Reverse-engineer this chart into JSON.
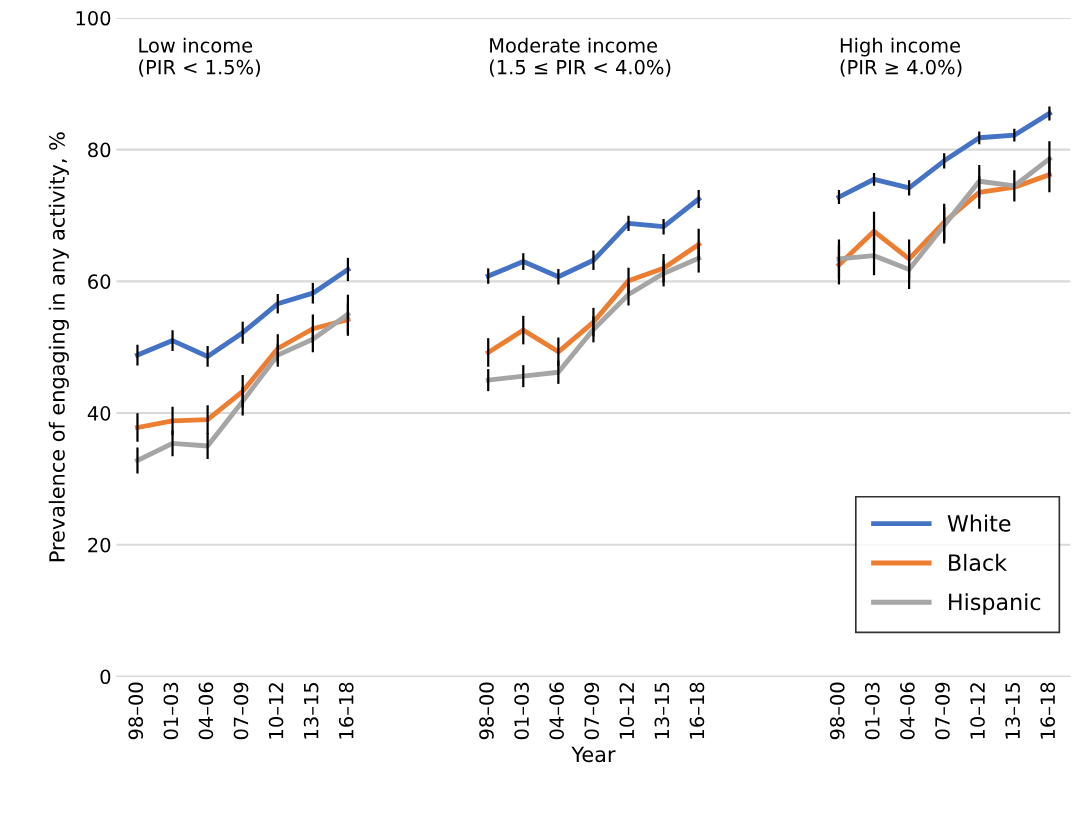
{
  "chart_data": {
    "type": "line",
    "categories": [
      "98–00",
      "01–03",
      "04–06",
      "07–09",
      "10–12",
      "13–15",
      "16–18",
      null,
      null,
      null,
      "98–00",
      "01–03",
      "04–06",
      "07–09",
      "10–12",
      "13–15",
      "16–18",
      null,
      null,
      null,
      "98–00",
      "01–03",
      "04–06",
      "07–09",
      "10–12",
      "13–15",
      "16–18"
    ],
    "series": [
      {
        "name": "White",
        "color": "#4472c4",
        "values": [
          48.8,
          51.0,
          48.6,
          52.2,
          56.6,
          58.2,
          61.8,
          null,
          null,
          null,
          60.8,
          63.0,
          60.7,
          63.2,
          68.8,
          68.3,
          72.5,
          null,
          null,
          null,
          72.8,
          75.5,
          74.2,
          78.3,
          81.8,
          82.2,
          85.5
        ],
        "errors": [
          1.4,
          1.4,
          1.4,
          1.5,
          1.3,
          1.4,
          1.6,
          null,
          null,
          null,
          1.0,
          1.1,
          1.0,
          1.3,
          1.0,
          1.0,
          1.2,
          null,
          null,
          null,
          0.9,
          0.8,
          1.0,
          1.0,
          0.8,
          0.8,
          0.9
        ]
      },
      {
        "name": "Black",
        "color": "#ed7d31",
        "values": [
          37.8,
          38.8,
          39.0,
          43.3,
          49.8,
          52.8,
          54.2,
          null,
          null,
          null,
          49.2,
          52.6,
          49.3,
          53.8,
          60.1,
          62.0,
          65.6,
          null,
          null,
          null,
          62.5,
          67.6,
          63.4,
          69.0,
          73.5,
          74.3,
          76.2
        ],
        "errors": [
          2.0,
          2.0,
          2.0,
          2.3,
          2.0,
          2.0,
          2.3,
          null,
          null,
          null,
          2.0,
          2.0,
          2.0,
          2.0,
          1.8,
          2.0,
          2.2,
          null,
          null,
          null,
          2.8,
          2.8,
          2.8,
          2.6,
          2.3,
          null,
          2.5
        ]
      },
      {
        "name": "Hispanic",
        "color": "#a5a5a5",
        "values": [
          32.8,
          35.4,
          35.0,
          41.8,
          48.8,
          51.2,
          55.0,
          null,
          null,
          null,
          45.0,
          45.6,
          46.2,
          52.7,
          58.0,
          61.2,
          63.5,
          null,
          null,
          null,
          63.4,
          63.9,
          61.8,
          68.5,
          75.2,
          74.5,
          78.6
        ],
        "errors": [
          1.8,
          1.8,
          1.8,
          2.0,
          1.6,
          1.8,
          2.8,
          null,
          null,
          null,
          1.5,
          1.5,
          1.6,
          1.8,
          1.5,
          1.8,
          2.0,
          null,
          null,
          null,
          2.8,
          2.8,
          2.8,
          2.6,
          2.3,
          2.2,
          2.5
        ]
      }
    ],
    "xlabel": "Year",
    "ylabel": "Prevalence of engaging in any activity, %",
    "ylim": [
      0,
      100
    ],
    "yticks": [
      0,
      20,
      40,
      60,
      80,
      100
    ],
    "annotations": [
      "Low income\n(PIR < 1.5%)",
      "Moderate income\n(1.5 ≤ PIR < 4.0%)",
      "High income\n(PIR ≥ 4.0%)"
    ],
    "grid": "y",
    "legend": "bottom right",
    "marker": "none",
    "line_style": "solid"
  }
}
